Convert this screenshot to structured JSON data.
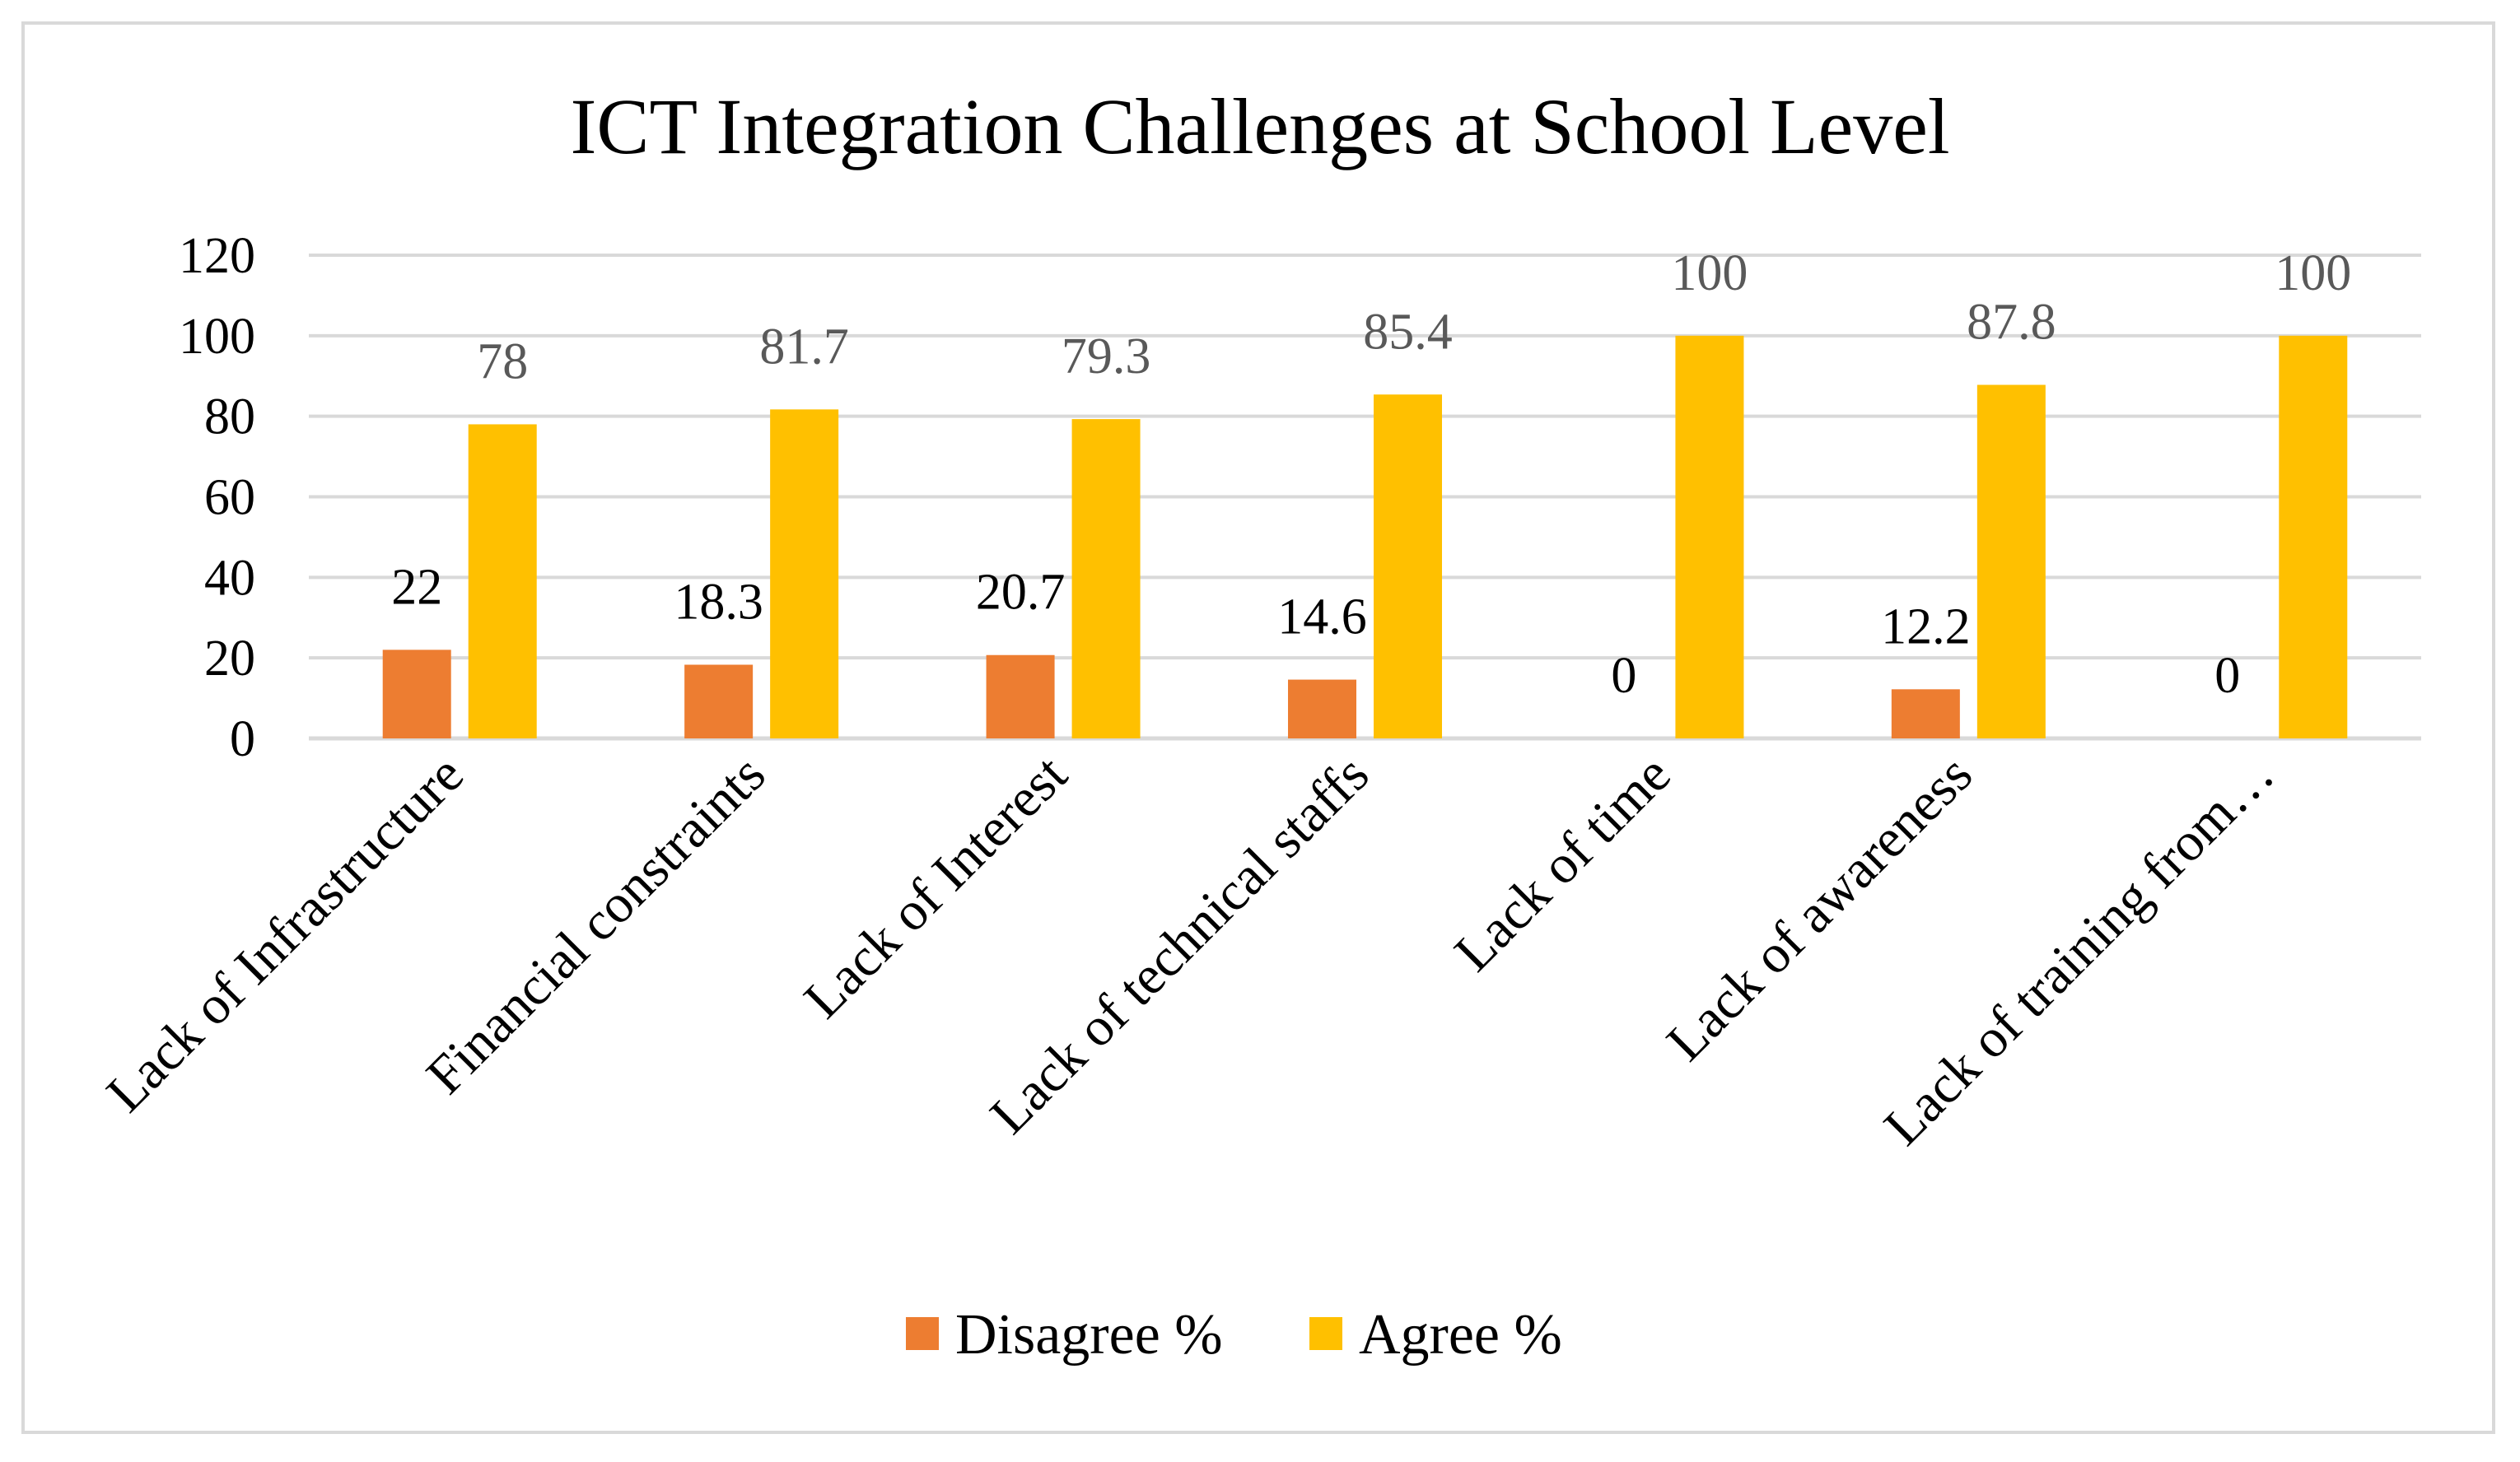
{
  "chart_data": {
    "type": "bar",
    "title": "ICT Integration Challenges at School Level",
    "xlabel": "",
    "ylabel": "",
    "ylim": [
      0,
      120
    ],
    "yticks": [
      0,
      20,
      40,
      60,
      80,
      100,
      120
    ],
    "grid": true,
    "legend_position": "bottom",
    "categories": [
      "Lack of Infrastructure",
      "Financial constraints",
      "Lack of Interest",
      "Lack of technical staffs",
      "Lack of time",
      "Lack of awareness",
      "Lack of training from…"
    ],
    "series": [
      {
        "name": "Disagree %",
        "color": "#ed7d31",
        "values": [
          22,
          18.3,
          20.7,
          14.6,
          0,
          12.2,
          0
        ],
        "labels": [
          "22",
          "18.3",
          "20.7",
          "14.6",
          "0",
          "12.2",
          "0"
        ]
      },
      {
        "name": "Agree %",
        "color": "#ffc000",
        "values": [
          78,
          81.7,
          79.3,
          85.4,
          100,
          87.8,
          100
        ],
        "labels": [
          "78",
          "81.7",
          "79.3",
          "85.4",
          "100",
          "87.8",
          "100"
        ]
      }
    ]
  }
}
